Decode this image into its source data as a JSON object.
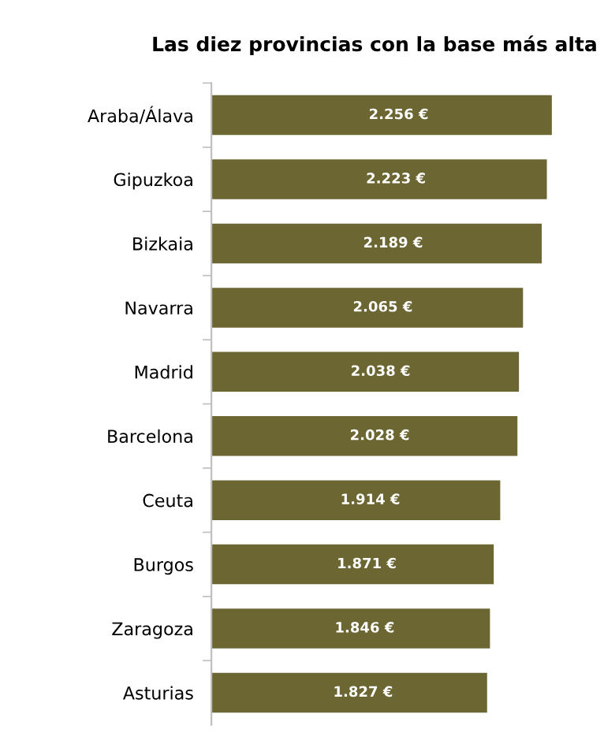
{
  "chart_data": {
    "type": "bar",
    "orientation": "horizontal",
    "title": "Las diez provincias con la base más alta",
    "categories": [
      "Araba/Álava",
      "Gipuzkoa",
      "Bizkaia",
      "Navarra",
      "Madrid",
      "Barcelona",
      "Ceuta",
      "Burgos",
      "Zaragoza",
      "Asturias"
    ],
    "values": [
      2256,
      2223,
      2189,
      2065,
      2038,
      2028,
      1914,
      1871,
      1846,
      1827
    ],
    "value_labels": [
      "2.256 €",
      "2.223 €",
      "2.189 €",
      "2.065 €",
      "2.038 €",
      "2.028 €",
      "1.914 €",
      "1.871 €",
      "1.846 €",
      "1.827 €"
    ],
    "color": "#6b6632",
    "grid": false,
    "legend": false
  }
}
